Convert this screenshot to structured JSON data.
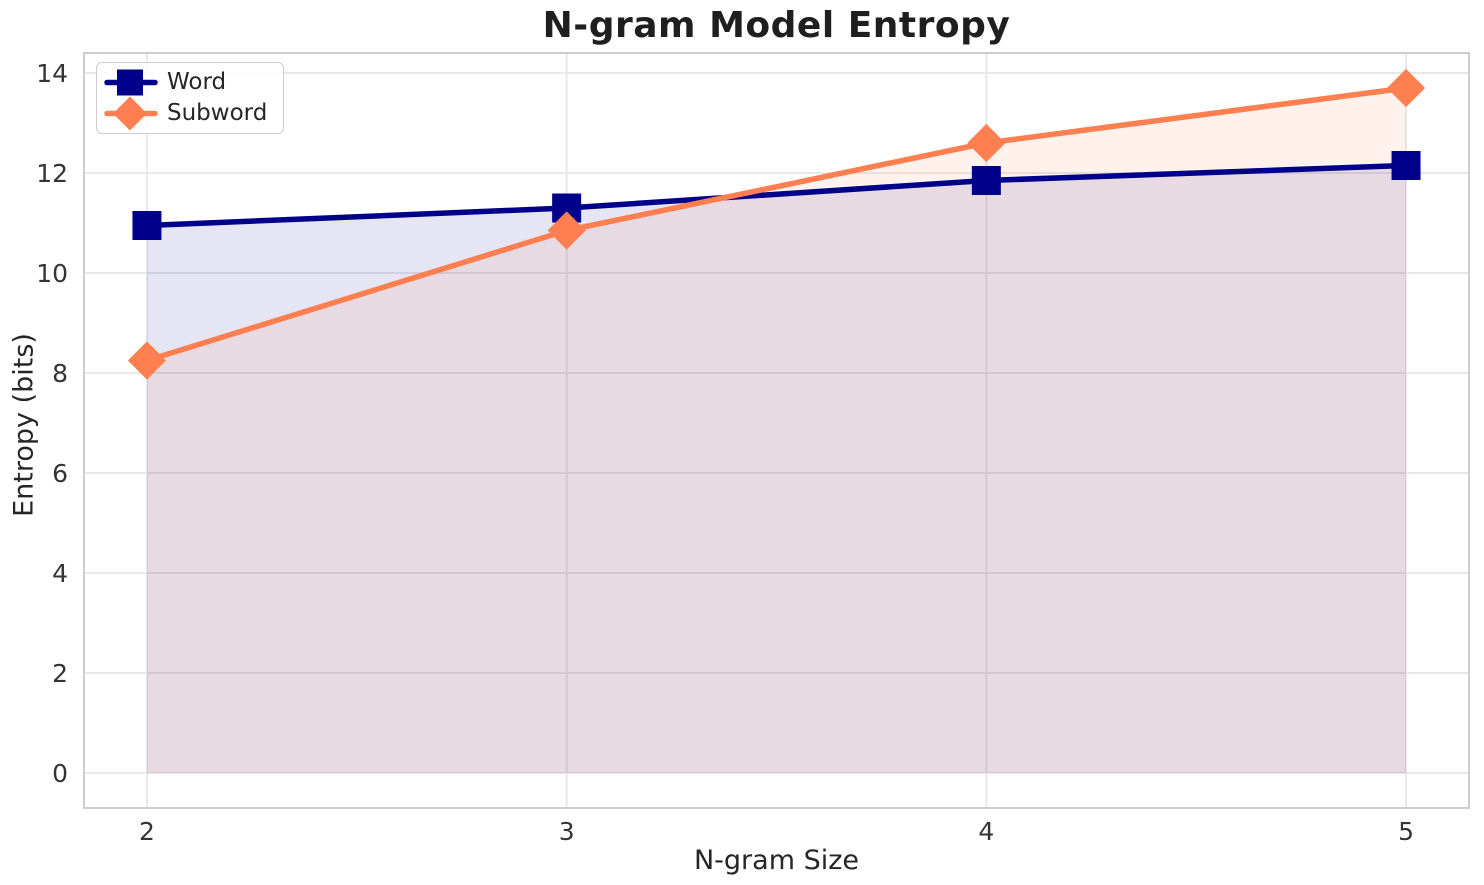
{
  "chart_data": {
    "type": "line",
    "title": "N-gram Model Entropy",
    "xlabel": "N-gram Size",
    "ylabel": "Entropy (bits)",
    "x": [
      2,
      3,
      4,
      5
    ],
    "xtick_labels": [
      "2",
      "3",
      "4",
      "5"
    ],
    "ytick_values": [
      0,
      2,
      4,
      6,
      8,
      10,
      12,
      14
    ],
    "ytick_labels": [
      "0",
      "2",
      "4",
      "6",
      "8",
      "10",
      "12",
      "14"
    ],
    "xlim": [
      1.85,
      5.15
    ],
    "ylim": [
      -0.7,
      14.4
    ],
    "grid": true,
    "legend_position": "upper-left",
    "fill_baseline": 0,
    "series": [
      {
        "name": "Word",
        "marker": "square",
        "color": "#00008B",
        "fill_opacity": 0.1,
        "values": [
          10.95,
          11.3,
          11.85,
          12.15
        ]
      },
      {
        "name": "Subword",
        "marker": "diamond",
        "color": "#FF7F50",
        "fill_opacity": 0.1,
        "values": [
          8.25,
          10.85,
          12.6,
          13.7
        ]
      }
    ]
  },
  "styles": {
    "background": "#ffffff",
    "grid_color": "#e8e8e8",
    "spine_color": "#cdcdcd",
    "text_color": "#262626",
    "tick_color": "#343434",
    "legend_border": "#cccccc"
  }
}
